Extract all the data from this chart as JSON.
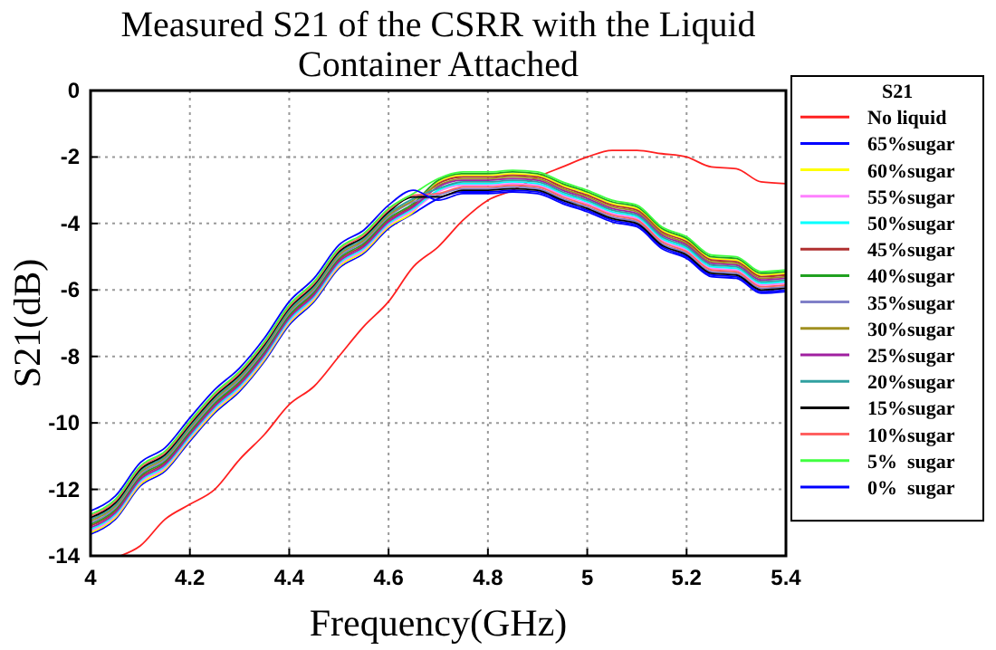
{
  "chart_data": {
    "type": "line",
    "title": "Measured S21 of the CSRR with the Liquid Container Attached",
    "xlabel": "Frequency(GHz)",
    "ylabel": "S21(dB)",
    "legend_title": "S21",
    "legend": "right",
    "grid": true,
    "line_style": "solid",
    "xlim": [
      4,
      5.4
    ],
    "xticks": [
      4,
      4.2,
      4.4,
      4.6,
      4.8,
      5,
      5.2,
      5.4
    ],
    "ylim": [
      -14,
      0
    ],
    "yticks": [
      -14,
      -12,
      -10,
      -8,
      -6,
      -4,
      -2,
      0
    ],
    "x": [
      4.0,
      4.05,
      4.1,
      4.15,
      4.2,
      4.25,
      4.3,
      4.35,
      4.4,
      4.45,
      4.5,
      4.55,
      4.6,
      4.65,
      4.7,
      4.75,
      4.8,
      4.85,
      4.9,
      4.95,
      5.0,
      5.05,
      5.1,
      5.15,
      5.2,
      5.25,
      5.3,
      5.35,
      5.4
    ],
    "series": [
      {
        "name": "No liquid",
        "color": "#ff2020",
        "x": [
          4.06,
          4.1,
          4.15,
          4.2,
          4.25,
          4.3,
          4.35,
          4.4,
          4.45,
          4.5,
          4.55,
          4.6,
          4.65,
          4.7,
          4.75,
          4.8,
          4.85,
          4.9,
          4.95,
          5.0,
          5.05,
          5.1,
          5.15,
          5.2,
          5.25,
          5.3,
          5.35,
          5.4
        ],
        "values": [
          -14.0,
          -13.7,
          -12.9,
          -12.45,
          -12.0,
          -11.1,
          -10.35,
          -9.45,
          -8.9,
          -8.0,
          -7.1,
          -6.35,
          -5.3,
          -4.7,
          -3.9,
          -3.3,
          -3.0,
          -2.6,
          -2.3,
          -2.0,
          -1.8,
          -1.8,
          -1.9,
          -2.0,
          -2.3,
          -2.35,
          -2.75,
          -2.8
        ]
      },
      {
        "name": "65%sugar",
        "color": "#0000ff",
        "values": [
          -13.35,
          -12.9,
          -11.9,
          -11.45,
          -10.55,
          -9.7,
          -9.05,
          -8.15,
          -7.05,
          -6.35,
          -5.35,
          -4.9,
          -4.15,
          -3.7,
          -3.25,
          -3.05,
          -3.05,
          -3.0,
          -3.05,
          -3.35,
          -3.6,
          -3.9,
          -4.05,
          -4.7,
          -5.0,
          -5.55,
          -5.6,
          -6.05,
          -6.0
        ]
      },
      {
        "name": "60%sugar",
        "color": "#ffff00",
        "values": [
          -13.3,
          -12.85,
          -11.85,
          -11.4,
          -10.5,
          -9.65,
          -9.0,
          -8.1,
          -7.0,
          -6.3,
          -5.3,
          -4.85,
          -4.1,
          -3.65,
          -2.75,
          -2.55,
          -2.55,
          -2.5,
          -2.55,
          -2.85,
          -3.1,
          -3.4,
          -3.55,
          -4.2,
          -4.5,
          -5.05,
          -5.1,
          -5.55,
          -5.5
        ]
      },
      {
        "name": "55%sugar",
        "color": "#ff80ff",
        "values": [
          -13.25,
          -12.8,
          -11.8,
          -11.35,
          -10.45,
          -9.6,
          -8.95,
          -8.05,
          -6.95,
          -6.25,
          -5.25,
          -4.8,
          -4.05,
          -3.6,
          -3.05,
          -2.85,
          -2.85,
          -2.8,
          -2.85,
          -3.15,
          -3.4,
          -3.7,
          -3.85,
          -4.5,
          -4.8,
          -5.35,
          -5.4,
          -5.85,
          -5.8
        ]
      },
      {
        "name": "50%sugar",
        "color": "#00ffff",
        "values": [
          -13.2,
          -12.75,
          -11.75,
          -11.3,
          -10.4,
          -9.55,
          -8.9,
          -8.0,
          -6.9,
          -6.2,
          -5.2,
          -4.75,
          -4.0,
          -3.55,
          -3.0,
          -2.8,
          -2.8,
          -2.75,
          -2.8,
          -3.1,
          -3.35,
          -3.65,
          -3.8,
          -4.45,
          -4.75,
          -5.3,
          -5.35,
          -5.8,
          -5.75
        ]
      },
      {
        "name": "45%sugar",
        "color": "#b03030",
        "values": [
          -13.1,
          -12.65,
          -11.65,
          -11.2,
          -10.3,
          -9.45,
          -8.8,
          -7.9,
          -6.8,
          -6.1,
          -5.1,
          -4.65,
          -3.9,
          -3.45,
          -2.8,
          -2.6,
          -2.6,
          -2.55,
          -2.6,
          -2.9,
          -3.15,
          -3.45,
          -3.6,
          -4.25,
          -4.55,
          -5.1,
          -5.15,
          -5.6,
          -5.55
        ]
      },
      {
        "name": "40%sugar",
        "color": "#20a020",
        "values": [
          -13.05,
          -12.6,
          -11.6,
          -11.15,
          -10.25,
          -9.4,
          -8.75,
          -7.85,
          -6.75,
          -6.05,
          -5.05,
          -4.6,
          -3.85,
          -3.4,
          -2.7,
          -2.5,
          -2.5,
          -2.45,
          -2.5,
          -2.8,
          -3.05,
          -3.35,
          -3.5,
          -4.15,
          -4.45,
          -5.0,
          -5.05,
          -5.5,
          -5.45
        ]
      },
      {
        "name": "35%sugar",
        "color": "#8080c8",
        "values": [
          -13.0,
          -12.55,
          -11.55,
          -11.1,
          -10.2,
          -9.35,
          -8.7,
          -7.8,
          -6.7,
          -6.0,
          -5.0,
          -4.55,
          -3.8,
          -3.35,
          -3.15,
          -2.95,
          -2.95,
          -2.9,
          -2.95,
          -3.25,
          -3.5,
          -3.8,
          -3.95,
          -4.6,
          -4.9,
          -5.45,
          -5.5,
          -5.95,
          -5.9
        ]
      },
      {
        "name": "30%sugar",
        "color": "#a09020",
        "values": [
          -12.95,
          -12.5,
          -11.5,
          -11.05,
          -10.15,
          -9.3,
          -8.65,
          -7.75,
          -6.65,
          -5.95,
          -4.95,
          -4.5,
          -3.75,
          -3.3,
          -2.85,
          -2.65,
          -2.65,
          -2.6,
          -2.65,
          -2.95,
          -3.2,
          -3.5,
          -3.65,
          -4.3,
          -4.6,
          -5.15,
          -5.2,
          -5.65,
          -5.6
        ]
      },
      {
        "name": "25%sugar",
        "color": "#a020a0",
        "values": [
          -13.15,
          -12.7,
          -11.7,
          -11.25,
          -10.35,
          -9.5,
          -8.85,
          -7.95,
          -6.85,
          -6.15,
          -5.15,
          -4.7,
          -3.95,
          -3.5,
          -2.9,
          -2.7,
          -2.7,
          -2.65,
          -2.7,
          -3.0,
          -3.25,
          -3.55,
          -3.7,
          -4.35,
          -4.65,
          -5.2,
          -5.25,
          -5.7,
          -5.65
        ]
      },
      {
        "name": "20%sugar",
        "color": "#30a0a0",
        "values": [
          -12.9,
          -12.45,
          -11.45,
          -11.0,
          -10.1,
          -9.25,
          -8.6,
          -7.7,
          -6.6,
          -5.9,
          -4.9,
          -4.45,
          -3.7,
          -3.25,
          -2.95,
          -2.75,
          -2.75,
          -2.7,
          -2.75,
          -3.05,
          -3.3,
          -3.6,
          -3.75,
          -4.4,
          -4.7,
          -5.25,
          -5.3,
          -5.75,
          -5.7
        ]
      },
      {
        "name": "15%sugar",
        "color": "#000000",
        "values": [
          -12.85,
          -12.4,
          -11.4,
          -10.95,
          -10.05,
          -9.2,
          -8.55,
          -7.65,
          -6.55,
          -5.85,
          -4.85,
          -4.4,
          -3.65,
          -3.2,
          -3.2,
          -3.0,
          -3.0,
          -2.95,
          -3.0,
          -3.3,
          -3.55,
          -3.85,
          -4.0,
          -4.65,
          -4.95,
          -5.5,
          -5.55,
          -6.0,
          -5.95
        ]
      },
      {
        "name": "10%sugar",
        "color": "#ff6060",
        "values": [
          -12.8,
          -12.35,
          -11.35,
          -10.9,
          -10.0,
          -9.15,
          -8.5,
          -7.6,
          -6.5,
          -5.8,
          -4.8,
          -4.35,
          -3.6,
          -3.15,
          -3.1,
          -2.9,
          -2.9,
          -2.85,
          -2.9,
          -3.2,
          -3.45,
          -3.75,
          -3.9,
          -4.55,
          -4.85,
          -5.4,
          -5.45,
          -5.9,
          -5.85
        ]
      },
      {
        "name": "5%  sugar",
        "color": "#40ff40",
        "values": [
          -12.75,
          -12.3,
          -11.3,
          -10.85,
          -9.95,
          -9.1,
          -8.45,
          -7.55,
          -6.45,
          -5.75,
          -4.75,
          -4.3,
          -3.55,
          -3.1,
          -2.65,
          -2.45,
          -2.45,
          -2.4,
          -2.45,
          -2.75,
          -3.0,
          -3.3,
          -3.45,
          -4.1,
          -4.4,
          -4.95,
          -5.0,
          -5.45,
          -5.4
        ]
      },
      {
        "name": "0%  sugar",
        "color": "#0000ff",
        "values": [
          -12.65,
          -12.2,
          -11.2,
          -10.75,
          -9.85,
          -9.0,
          -8.35,
          -7.45,
          -6.35,
          -5.65,
          -4.65,
          -4.2,
          -3.45,
          -3.0,
          -3.3,
          -3.1,
          -3.1,
          -3.05,
          -3.1,
          -3.4,
          -3.65,
          -3.95,
          -4.1,
          -4.75,
          -5.05,
          -5.6,
          -5.65,
          -6.1,
          -6.05
        ]
      }
    ]
  }
}
